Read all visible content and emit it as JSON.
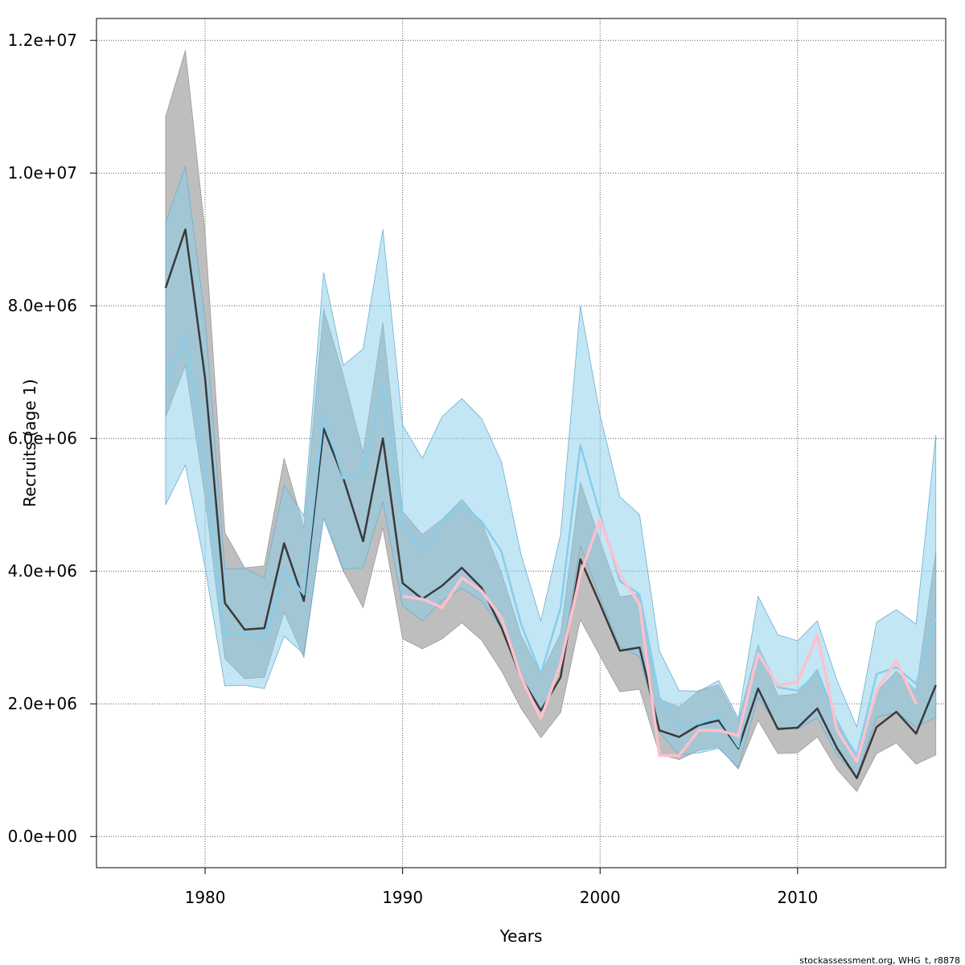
{
  "chart_data": {
    "type": "line",
    "xlabel": "Years",
    "ylabel": "Recruits (age 1)",
    "footer": "stockassessment.org, WHG_t, r8878",
    "xlim": [
      1974.5,
      2017.5
    ],
    "ylim": [
      -470000,
      12330000
    ],
    "x_ticks": [
      1980,
      1990,
      2000,
      2010
    ],
    "x_tick_labels": [
      "1980",
      "1990",
      "2000",
      "2010"
    ],
    "y_ticks": [
      0,
      2000000,
      4000000,
      6000000,
      8000000,
      10000000,
      12000000
    ],
    "y_tick_labels": [
      "0.0e+00",
      "2.0e+06",
      "4.0e+06",
      "6.0e+06",
      "8.0e+06",
      "1.0e+07",
      "1.2e+07"
    ],
    "grid": true,
    "colors": {
      "black_band": "#bebebe",
      "black_line": "#333333",
      "blue_band": "#87ceeb",
      "blue_line": "#87ceeb",
      "pink_line": "#ffc0cb",
      "grid": "#555555"
    },
    "series": [
      {
        "name": "Black estimate",
        "x": [
          1978,
          1979,
          1980,
          1981,
          1982,
          1983,
          1984,
          1985,
          1986,
          1987,
          1988,
          1989,
          1990,
          1991,
          1992,
          1993,
          1994,
          1995,
          1996,
          1997,
          1998,
          1999,
          2000,
          2001,
          2002,
          2003,
          2004,
          2005,
          2006,
          2007,
          2008,
          2009,
          2010,
          2011,
          2012,
          2013,
          2014,
          2015,
          2016,
          2017
        ],
        "values": [
          8270000,
          9150000,
          6900000,
          3520000,
          3120000,
          3140000,
          4420000,
          3550000,
          6150000,
          5400000,
          4450000,
          6000000,
          3820000,
          3580000,
          3780000,
          4050000,
          3750000,
          3150000,
          2400000,
          1900000,
          2400000,
          4180000,
          3500000,
          2800000,
          2850000,
          1600000,
          1500000,
          1680000,
          1750000,
          1330000,
          2230000,
          1620000,
          1640000,
          1930000,
          1330000,
          880000,
          1650000,
          1880000,
          1550000,
          2280000
        ],
        "lower": [
          6320000,
          7100000,
          5100000,
          2680000,
          2380000,
          2400000,
          3380000,
          2700000,
          4800000,
          4000000,
          3450000,
          4650000,
          2980000,
          2830000,
          2980000,
          3220000,
          2960000,
          2500000,
          1930000,
          1490000,
          1870000,
          3270000,
          2720000,
          2180000,
          2220000,
          1240000,
          1160000,
          1300000,
          1350000,
          1020000,
          1750000,
          1250000,
          1260000,
          1500000,
          1010000,
          680000,
          1250000,
          1410000,
          1090000,
          1230000
        ],
        "upper": [
          10850000,
          11850000,
          9100000,
          4580000,
          4050000,
          4080000,
          5700000,
          4650000,
          7950000,
          6950000,
          5780000,
          7750000,
          4900000,
          4550000,
          4780000,
          5080000,
          4730000,
          3980000,
          3030000,
          2440000,
          3060000,
          5340000,
          4460000,
          3610000,
          3660000,
          2070000,
          1950000,
          2200000,
          2290000,
          1740000,
          2890000,
          2120000,
          2150000,
          2520000,
          1750000,
          1200000,
          2180000,
          2490000,
          2200000,
          4300000
        ]
      },
      {
        "name": "Blue estimate",
        "x": [
          1978,
          1979,
          1980,
          1981,
          1982,
          1983,
          1984,
          1985,
          1986,
          1987,
          1988,
          1989,
          1990,
          1991,
          1992,
          1993,
          1994,
          1995,
          1996,
          1997,
          1998,
          1999,
          2000,
          2001,
          2002,
          2003,
          2004,
          2005,
          2006,
          2007,
          2008,
          2009,
          2010,
          2011,
          2012,
          2013,
          2014,
          2015,
          2016,
          2017
        ],
        "values": [
          6800000,
          7550000,
          5600000,
          3050000,
          3050000,
          2950000,
          4000000,
          3650000,
          6350000,
          5400000,
          5450000,
          6800000,
          4700000,
          4280000,
          4750000,
          5000000,
          4750000,
          4300000,
          3200000,
          2450000,
          3450000,
          5900000,
          4850000,
          3850000,
          3650000,
          2100000,
          1650000,
          1700000,
          1800000,
          1350000,
          2850000,
          2250000,
          2200000,
          2450000,
          1700000,
          1220000,
          2450000,
          2550000,
          2300000,
          3300000
        ],
        "lower": [
          5000000,
          5600000,
          4050000,
          2270000,
          2280000,
          2230000,
          3020000,
          2750000,
          4800000,
          4030000,
          4050000,
          5050000,
          3480000,
          3250000,
          3560000,
          3740000,
          3550000,
          3150000,
          2350000,
          1820000,
          2560000,
          4380000,
          3600000,
          2860000,
          2710000,
          1580000,
          1230000,
          1260000,
          1330000,
          1040000,
          2100000,
          1650000,
          1620000,
          1790000,
          1230000,
          900000,
          1800000,
          1870000,
          1650000,
          1800000
        ],
        "upper": [
          9250000,
          10100000,
          7800000,
          4030000,
          4040000,
          3900000,
          5300000,
          4830000,
          8500000,
          7100000,
          7350000,
          9150000,
          6200000,
          5700000,
          6330000,
          6600000,
          6300000,
          5650000,
          4250000,
          3250000,
          4550000,
          8000000,
          6350000,
          5120000,
          4850000,
          2800000,
          2200000,
          2190000,
          2350000,
          1780000,
          3620000,
          3040000,
          2950000,
          3250000,
          2350000,
          1650000,
          3230000,
          3420000,
          3200000,
          6050000
        ]
      },
      {
        "name": "Pink estimate",
        "x": [
          1990,
          1991,
          1992,
          1993,
          1994,
          1995,
          1996,
          1997,
          1998,
          1999,
          2000,
          2001,
          2002,
          2003,
          2004,
          2005,
          2006,
          2007,
          2008,
          2009,
          2010,
          2011,
          2012,
          2013,
          2014,
          2015,
          2016
        ],
        "values": [
          3620000,
          3580000,
          3450000,
          3900000,
          3700000,
          3300000,
          2400000,
          1780000,
          2600000,
          3950000,
          4780000,
          3950000,
          3500000,
          1220000,
          1220000,
          1600000,
          1600000,
          1520000,
          2760000,
          2280000,
          2330000,
          3030000,
          1600000,
          1130000,
          2200000,
          2650000,
          2000000
        ]
      }
    ]
  }
}
